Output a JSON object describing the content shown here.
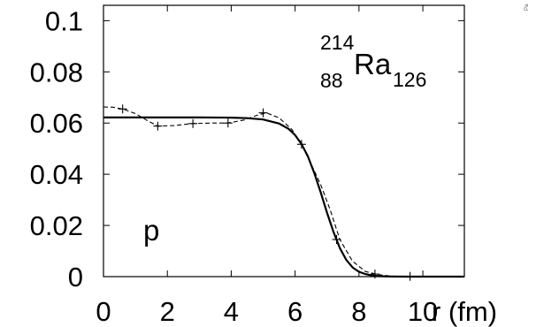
{
  "chart_data": {
    "type": "line",
    "x_ticks": [
      "0",
      "2",
      "4",
      "6",
      "8",
      "10"
    ],
    "y_ticks": [
      "0",
      "0.02",
      "0.04",
      "0.06",
      "0.08",
      "0.1"
    ],
    "x_axis_unit_label": "r (fm)",
    "xlim": [
      0,
      11.3
    ],
    "ylim": [
      0,
      0.106
    ],
    "grid": false,
    "legend": "none",
    "annotations": {
      "nucleus_mass": "214",
      "nucleus_charge": "88",
      "nucleus_symbol": "Ra",
      "nucleus_neutrons": "126",
      "particle": "p",
      "corner_text": "Pa"
    },
    "series": [
      {
        "style": "solid",
        "color": "#000000",
        "x": [
          0,
          1,
          2,
          3,
          4,
          4.5,
          5,
          5.5,
          5.8,
          6.0,
          6.2,
          6.4,
          6.6,
          6.8,
          7.0,
          7.2,
          7.4,
          7.6,
          7.8,
          8.0,
          8.2,
          8.4,
          8.6,
          8.8,
          9.0,
          9.5,
          10,
          11,
          11.3
        ],
        "y": [
          0.0622,
          0.0622,
          0.0622,
          0.0622,
          0.0621,
          0.0619,
          0.0614,
          0.0598,
          0.0577,
          0.0553,
          0.0518,
          0.047,
          0.0405,
          0.033,
          0.025,
          0.0175,
          0.0112,
          0.0066,
          0.0036,
          0.0019,
          0.001,
          0.0005,
          0.0002,
          0.0001,
          5e-05,
          0.0,
          0.0,
          0.0,
          0.0
        ]
      },
      {
        "style": "dashed",
        "color": "#000000",
        "x": [
          0,
          0.3,
          0.6,
          1.0,
          1.4,
          1.7,
          2.2,
          2.8,
          3.4,
          3.9,
          4.4,
          4.8,
          5.1,
          5.5,
          5.9,
          6.2,
          6.5,
          6.8,
          7.1,
          7.4,
          7.8,
          8.2,
          8.6,
          9.0,
          9.5,
          10,
          11,
          11.3
        ],
        "y": [
          0.0663,
          0.0662,
          0.0655,
          0.0637,
          0.0608,
          0.0588,
          0.059,
          0.0598,
          0.06,
          0.06,
          0.0612,
          0.063,
          0.064,
          0.062,
          0.0575,
          0.0517,
          0.044,
          0.036,
          0.026,
          0.0145,
          0.006,
          0.002,
          0.0008,
          0.0002,
          0.0,
          0.0,
          0.0,
          0.0
        ]
      }
    ],
    "markers": {
      "x": [
        0.6,
        1.7,
        2.8,
        3.9,
        5.0,
        6.2,
        7.3,
        8.5,
        9.6
      ],
      "y": [
        0.0655,
        0.0588,
        0.0598,
        0.06,
        0.064,
        0.0517,
        0.0145,
        0.001,
        0.0001
      ]
    }
  }
}
